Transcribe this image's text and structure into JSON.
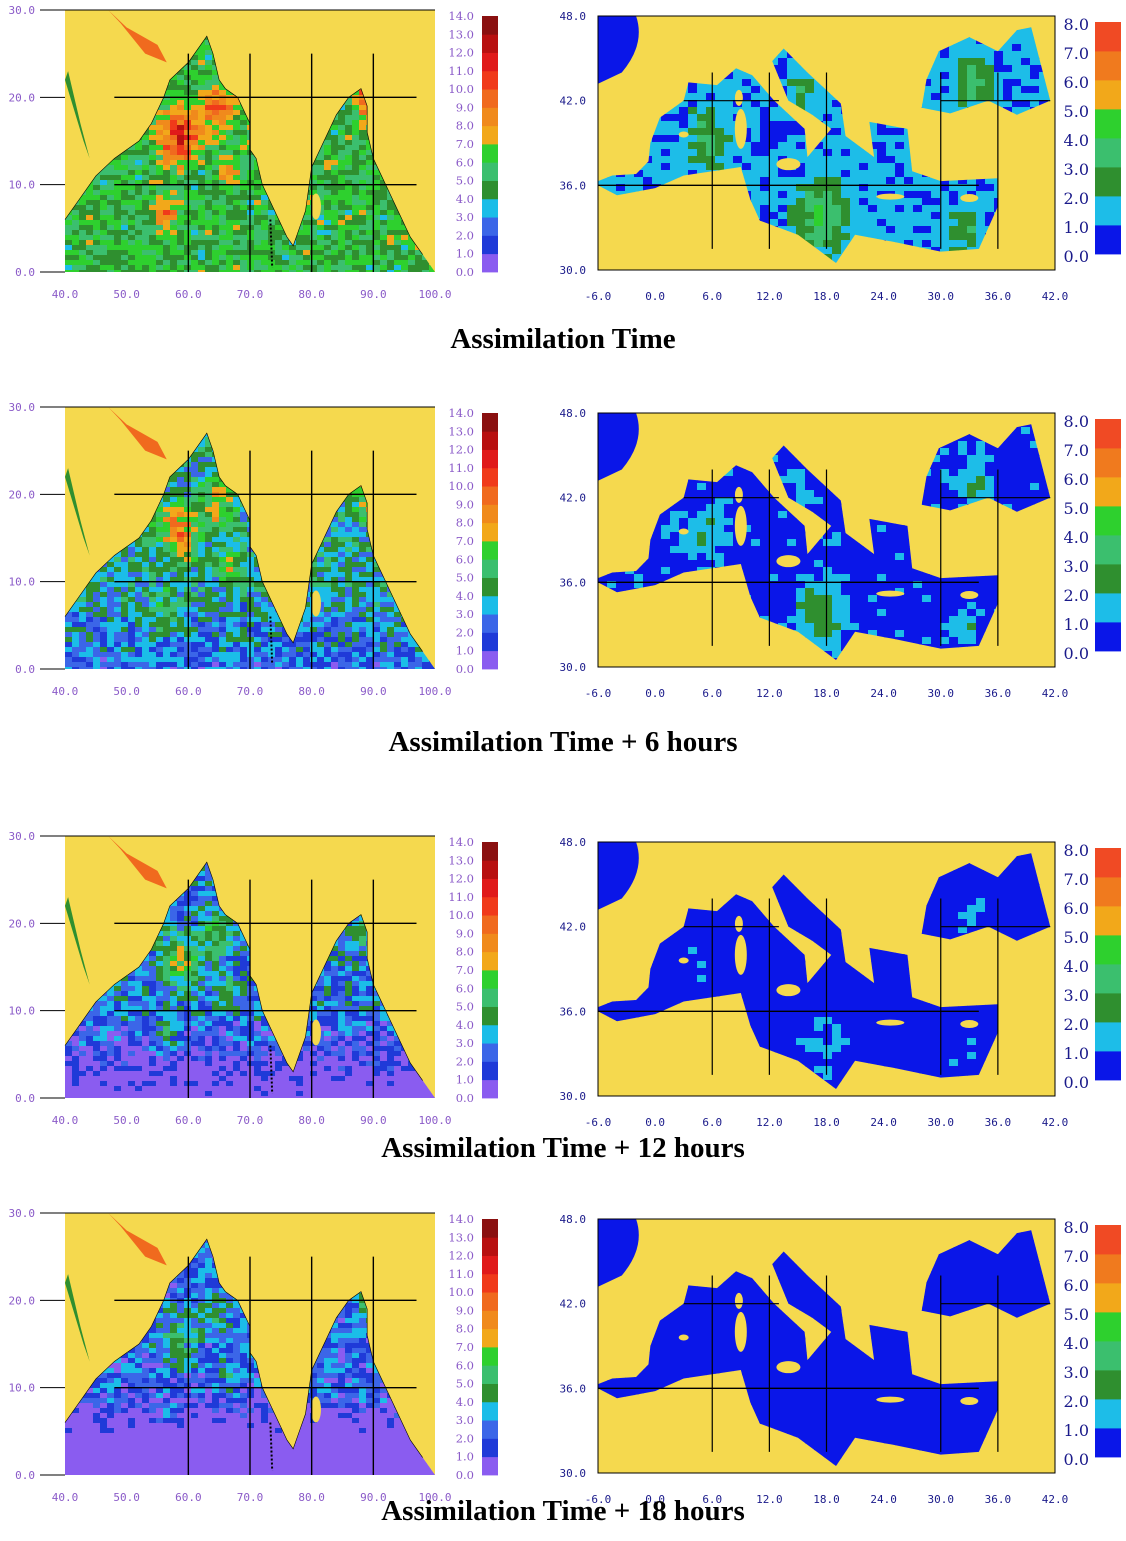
{
  "colors": {
    "land": "#f5d94e",
    "frame": "#000000",
    "axis_text_indian": "#8a5ac8",
    "axis_text_med": "#1a1a8a",
    "colorbar_indian": [
      "#8a5cf0",
      "#1f3ad8",
      "#3b66e8",
      "#1bbde8",
      "#2f8f2f",
      "#3bbf6e",
      "#2ed02e",
      "#f2a81a",
      "#f08a1c",
      "#f06a1e",
      "#f03a1a",
      "#e01a1a",
      "#b81010",
      "#8a1010"
    ],
    "colorbar_med": [
      "#0a16e8",
      "#1dbde8",
      "#2f8f2f",
      "#3bbf6e",
      "#2ed02e",
      "#f2a81a",
      "#f07a1e",
      "#f04a24"
    ]
  },
  "indian_ocean": {
    "x_ticks": [
      "40.0",
      "50.0",
      "60.0",
      "70.0",
      "80.0",
      "90.0",
      "100.0"
    ],
    "y_ticks": [
      "0.0",
      "10.0",
      "20.0",
      "30.0"
    ],
    "colorbar_labels": [
      "14.0",
      "13.0",
      "12.0",
      "11.0",
      "10.0",
      "9.0",
      "8.0",
      "7.0",
      "6.0",
      "5.0",
      "4.0",
      "3.0",
      "2.0",
      "1.0",
      "0.0"
    ]
  },
  "mediterranean": {
    "x_ticks": [
      "-6.0",
      "0.0",
      "6.0",
      "12.0",
      "18.0",
      "24.0",
      "30.0",
      "36.0",
      "42.0"
    ],
    "y_ticks": [
      "30.0",
      "36.0",
      "42.0",
      "48.0"
    ],
    "colorbar_labels": [
      "8.0",
      "7.0",
      "6.0",
      "5.0",
      "4.0",
      "3.0",
      "2.0",
      "1.0",
      "0.0"
    ]
  },
  "panels": [
    {
      "caption": "Assimilation Time",
      "io_mean_level": 5.5,
      "med_mean_level": 1.2
    },
    {
      "caption": "Assimilation Time + 6 hours",
      "io_mean_level": 4.0,
      "med_mean_level": 0.6
    },
    {
      "caption": "Assimilation Time + 12 hours",
      "io_mean_level": 2.8,
      "med_mean_level": 0.2
    },
    {
      "caption": "Assimilation Time + 18 hours",
      "io_mean_level": 2.2,
      "med_mean_level": 0.15
    }
  ]
}
